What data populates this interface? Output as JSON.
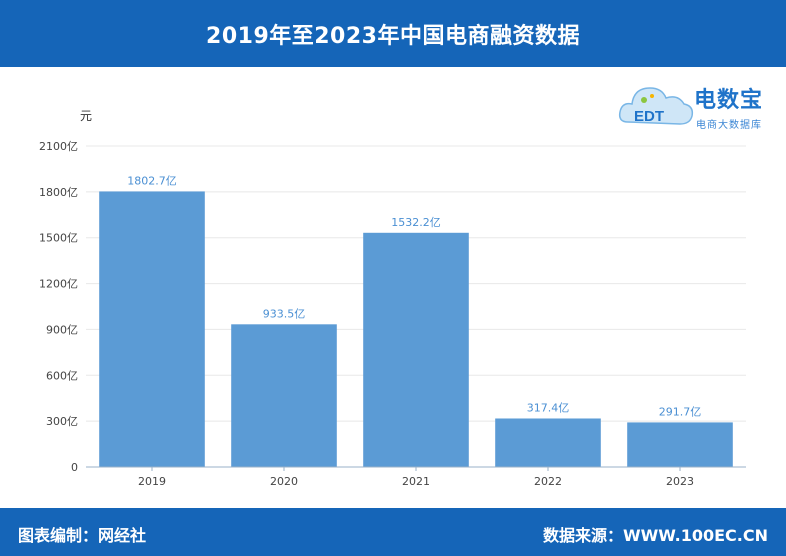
{
  "header": {
    "title": "2019年至2023年中国电商融资数据"
  },
  "footer": {
    "left": "图表编制：网经社",
    "right": "数据来源：WWW.100EC.CN"
  },
  "logo": {
    "name": "电数宝",
    "tagline": "电商大数据库",
    "mark_text": "EDT"
  },
  "colors": {
    "bar": "#5b9bd5",
    "header_bg": "#1565b8",
    "label": "#4a8fd3"
  },
  "chart_data": {
    "type": "bar",
    "title": "2019年至2023年中国电商融资数据",
    "unit_label": "元",
    "categories": [
      "2019",
      "2020",
      "2021",
      "2022",
      "2023"
    ],
    "values": [
      1802.7,
      933.5,
      1532.2,
      317.4,
      291.7
    ],
    "value_labels": [
      "1802.7亿",
      "933.5亿",
      "1532.2亿",
      "317.4亿",
      "291.7亿"
    ],
    "y_ticks": [
      0,
      300,
      600,
      900,
      1200,
      1500,
      1800,
      2100
    ],
    "y_tick_labels": [
      "0",
      "300亿",
      "600亿",
      "900亿",
      "1200亿",
      "1500亿",
      "1800亿",
      "2100亿"
    ],
    "ylim": [
      0,
      2100
    ],
    "grid": true,
    "legend": "none"
  }
}
